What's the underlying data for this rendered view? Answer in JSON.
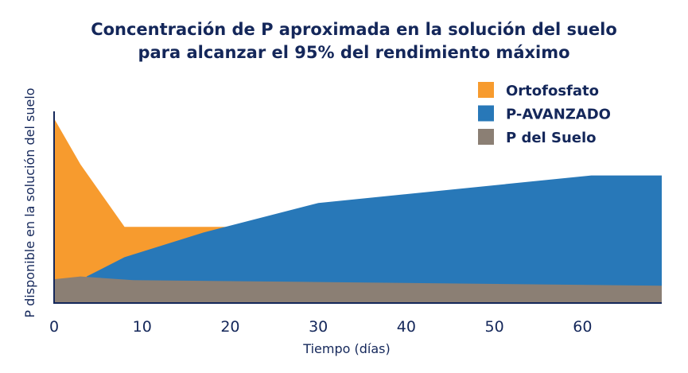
{
  "chart_data": {
    "type": "area",
    "title": "Concentración de P aproximada en la solución del suelo para alcanzar el 95% del rendimiento máximo",
    "title_lines": [
      "Concentración de P aproximada en la solución del suelo",
      "para alcanzar el 95% del rendimiento máximo"
    ],
    "xlabel": "Tiempo (días)",
    "ylabel": "P disponible en la solución del suelo",
    "xlim": [
      0,
      69
    ],
    "ylim": [
      0,
      100
    ],
    "x_ticks": [
      0,
      10,
      20,
      30,
      40,
      50,
      60
    ],
    "y_ticks": [],
    "grid": false,
    "legend_position": "top-right",
    "series": [
      {
        "name": "Ortofosfato",
        "color": "#f79b2e",
        "points": [
          [
            0,
            100
          ],
          [
            3,
            75
          ],
          [
            8,
            41
          ],
          [
            20,
            41
          ]
        ]
      },
      {
        "name": "P-AVANZADO",
        "color": "#2878b8",
        "points": [
          [
            3.7,
            14
          ],
          [
            8,
            24.5
          ],
          [
            17,
            38
          ],
          [
            30,
            54
          ],
          [
            61,
            69
          ],
          [
            69,
            69
          ]
        ]
      },
      {
        "name": "P del Suelo",
        "color": "#8b7f74",
        "points": [
          [
            0,
            12.5
          ],
          [
            3,
            14
          ],
          [
            9,
            12
          ],
          [
            30,
            11
          ],
          [
            69,
            9
          ]
        ]
      }
    ]
  }
}
